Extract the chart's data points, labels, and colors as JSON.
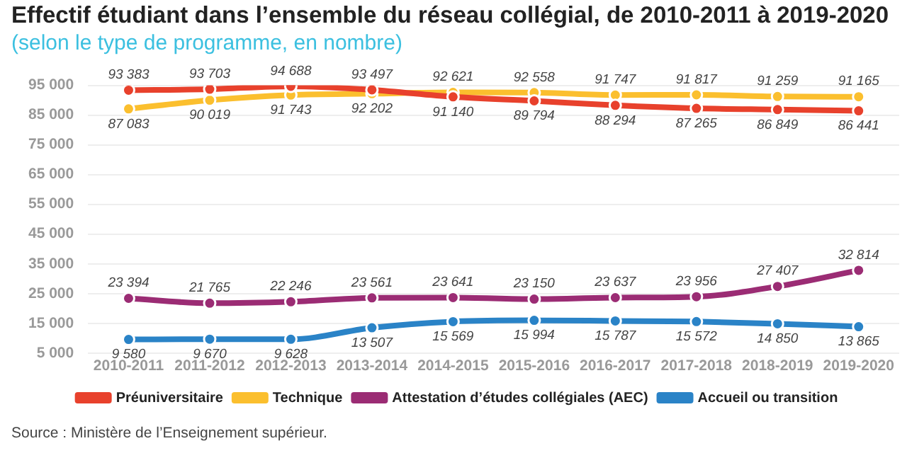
{
  "chart_data": {
    "type": "line",
    "title": "Effectif étudiant dans l’ensemble du réseau collégial, de 2010-2011 à 2019-2020",
    "subtitle": "(selon le type de programme, en nombre)",
    "categories": [
      "2010-2011",
      "2011-2012",
      "2012-2013",
      "2013-2014",
      "2014-2015",
      "2015-2016",
      "2016-2017",
      "2017-2018",
      "2018-2019",
      "2019-2020"
    ],
    "series": [
      {
        "name": "Préuniversitaire",
        "color": "#e8412c",
        "values": [
          93383,
          93703,
          94688,
          93497,
          91140,
          89794,
          88294,
          87265,
          86849,
          86441
        ]
      },
      {
        "name": "Technique",
        "color": "#fbbf2e",
        "values": [
          87083,
          90019,
          91743,
          92202,
          92621,
          92558,
          91747,
          91817,
          91259,
          91165
        ]
      },
      {
        "name": "Attestation d’études collégiales (AEC)",
        "color": "#9b2c74",
        "values": [
          23394,
          21765,
          22246,
          23561,
          23641,
          23150,
          23637,
          23956,
          27407,
          32814
        ]
      },
      {
        "name": "Accueil ou transition",
        "color": "#2a83c7",
        "values": [
          9580,
          9670,
          9628,
          13507,
          15569,
          15994,
          15787,
          15572,
          14850,
          13865
        ]
      }
    ],
    "ylim": [
      5000,
      95000
    ],
    "yticks": [
      5000,
      15000,
      25000,
      35000,
      45000,
      55000,
      65000,
      75000,
      85000,
      95000
    ],
    "grid": "y",
    "legend": "bottom",
    "marker": "circle",
    "line_style": "solid",
    "data_labels": true,
    "annotations": [
      "Source : Ministère de l’Enseignement supérieur."
    ]
  }
}
